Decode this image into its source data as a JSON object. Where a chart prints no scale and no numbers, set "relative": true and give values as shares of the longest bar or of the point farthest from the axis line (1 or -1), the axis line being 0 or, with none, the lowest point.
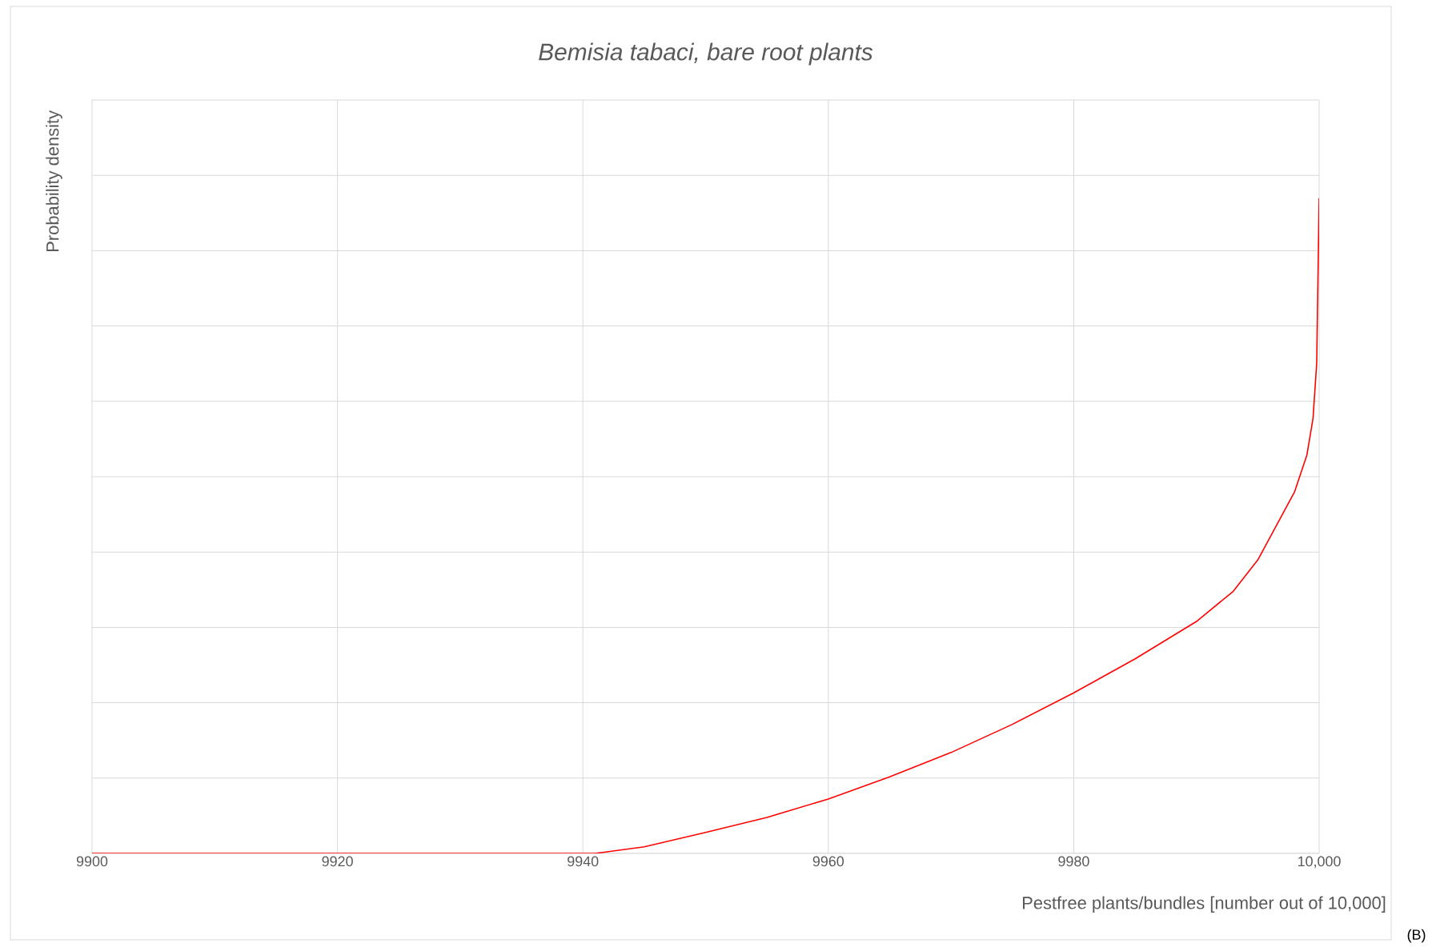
{
  "chart_data": {
    "type": "line",
    "title": "*Bemisia tabaci, bare root plants*",
    "xlabel": "Pestfree plants/bundles [number out of 10,000]",
    "ylabel": "Probability density",
    "annotations": [
      "(B)"
    ],
    "relative": true,
    "grid": true,
    "line_style": "solid",
    "xlim": [
      9900,
      10000
    ],
    "xticks": [
      9900,
      9920,
      9940,
      9960,
      9980,
      {
        "value": 10000,
        "label": "10,000"
      }
    ],
    "series": [
      {
        "color": "#ff0000",
        "x": [
          9900,
          9920,
          9941,
          9945,
          9950,
          9955,
          9960,
          9965,
          9970,
          9975,
          9980,
          9985,
          9990,
          9993,
          9995,
          9998,
          9999,
          9999.5,
          9999.8,
          10000
        ],
        "values": [
          0,
          0,
          0,
          0.01,
          0.032,
          0.055,
          0.083,
          0.117,
          0.154,
          0.197,
          0.245,
          0.297,
          0.354,
          0.4,
          0.448,
          0.552,
          0.608,
          0.664,
          0.748,
          1
        ]
      }
    ]
  }
}
